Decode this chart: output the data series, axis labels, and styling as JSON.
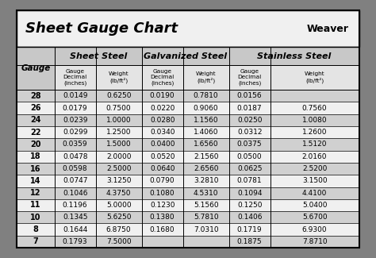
{
  "title": "Sheet Gauge Chart",
  "bg_outer": "#808080",
  "bg_white": "#ffffff",
  "bg_header_section": "#c8c8c8",
  "bg_row_even": "#d0d0d0",
  "bg_row_odd": "#f0f0f0",
  "gauges": [
    28,
    26,
    24,
    22,
    20,
    18,
    16,
    14,
    12,
    11,
    10,
    8,
    7
  ],
  "sheet_steel_label": "Sheet Steel",
  "galvanized_label": "Galvanized Steel",
  "stainless_label": "Stainless Steel",
  "ss_decimal": [
    "0.0149",
    "0.0179",
    "0.0239",
    "0.0299",
    "0.0359",
    "0.0478",
    "0.0598",
    "0.0747",
    "0.1046",
    "0.1196",
    "0.1345",
    "0.1644",
    "0.1793"
  ],
  "ss_weight": [
    "0.6250",
    "0.7500",
    "1.0000",
    "1.2500",
    "1.5000",
    "2.0000",
    "2.5000",
    "3.1250",
    "4.3750",
    "5.0000",
    "5.6250",
    "6.8750",
    "7.5000"
  ],
  "gs_decimal": [
    "0.0190",
    "0.0220",
    "0.0280",
    "0.0340",
    "0.0400",
    "0.0520",
    "0.0640",
    "0.0790",
    "0.1080",
    "0.1230",
    "0.1380",
    "0.1680",
    ""
  ],
  "gs_weight": [
    "0.7810",
    "0.9060",
    "1.1560",
    "1.4060",
    "1.6560",
    "2.1560",
    "2.6560",
    "3.2810",
    "4.5310",
    "5.1560",
    "5.7810",
    "7.0310",
    ""
  ],
  "st_decimal": [
    "0.0156",
    "0.0187",
    "0.0250",
    "0.0312",
    "0.0375",
    "0.0500",
    "0.0625",
    "0.0781",
    "0.1094",
    "0.1250",
    "0.1406",
    "0.1719",
    "0.1875"
  ],
  "st_weight": [
    "",
    "0.7560",
    "1.0080",
    "1.2600",
    "1.5120",
    "2.0160",
    "2.5200",
    "3.1500",
    "4.4100",
    "5.0400",
    "5.6700",
    "6.9300",
    "7.8710"
  ]
}
